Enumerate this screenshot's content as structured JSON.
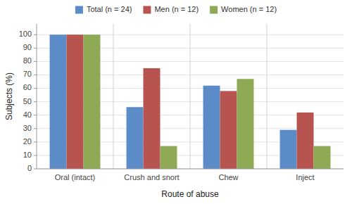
{
  "chart_data": {
    "type": "bar",
    "categories": [
      "Oral (intact)",
      "Crush and snort",
      "Chew",
      "Inject"
    ],
    "series": [
      {
        "name": "Total (n = 24)",
        "color": "#5b8cc8",
        "values": [
          100,
          46,
          62,
          29
        ]
      },
      {
        "name": "Men (n = 12)",
        "color": "#b85450",
        "values": [
          100,
          75,
          58,
          42
        ]
      },
      {
        "name": "Women (n = 12)",
        "color": "#8eaa55",
        "values": [
          100,
          17,
          67,
          17
        ]
      }
    ],
    "xlabel": "Route of abuse",
    "ylabel": "Subjects (%)",
    "ylim": [
      0,
      108
    ],
    "yticks": [
      0,
      10,
      20,
      30,
      40,
      50,
      60,
      70,
      80,
      90,
      100
    ],
    "grid": true,
    "legend": "top"
  }
}
